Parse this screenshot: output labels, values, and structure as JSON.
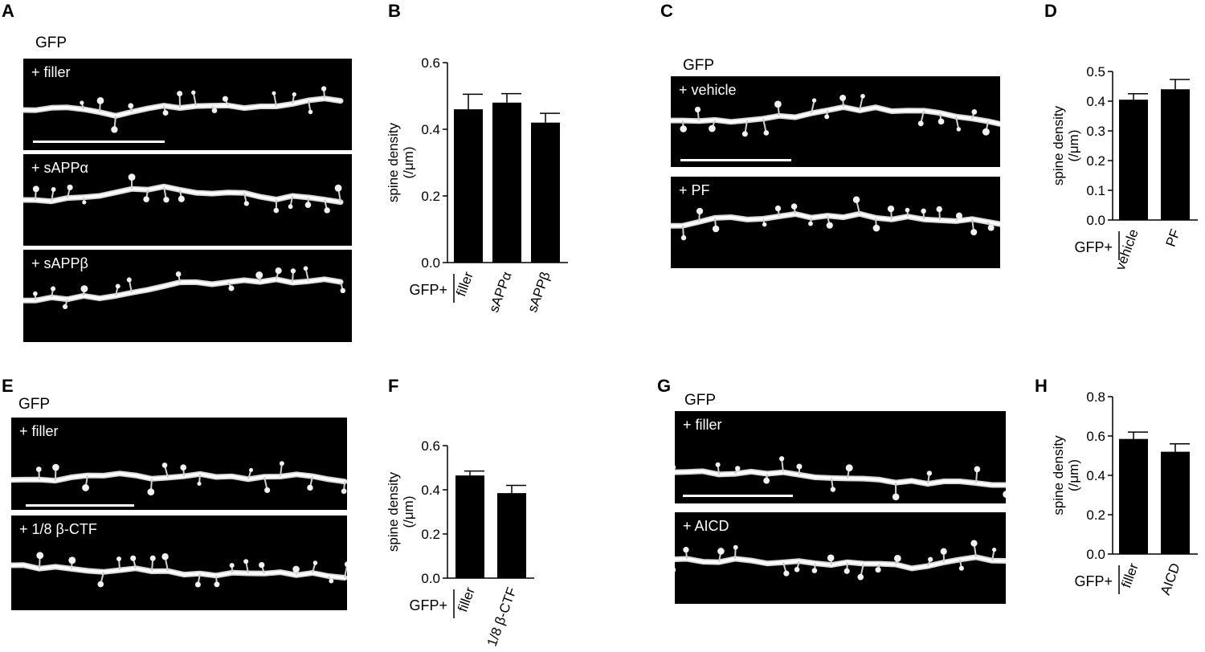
{
  "panels": [
    {
      "id": "A",
      "label": "A",
      "title": "GFP",
      "images": [
        "+ filler",
        "+ sAPPα",
        "+ sAPPβ"
      ]
    },
    {
      "id": "C",
      "label": "C",
      "title": "GFP",
      "images": [
        "+ vehicle",
        "+ PF"
      ]
    },
    {
      "id": "E",
      "label": "E",
      "title": "GFP",
      "images": [
        "+ filler",
        "+ 1/8 β-CTF"
      ]
    },
    {
      "id": "G",
      "label": "G",
      "title": "GFP",
      "images": [
        "+ filler",
        "+ AICD"
      ]
    }
  ],
  "chart_data": [
    {
      "id": "B",
      "label": "B",
      "type": "bar",
      "ylabel": [
        "spine density",
        "(/μm)"
      ],
      "group_label": "GFP+",
      "categories": [
        "filler",
        "sAPPα",
        "sAPPβ"
      ],
      "values": [
        0.46,
        0.48,
        0.42
      ],
      "errors": [
        0.045,
        0.027,
        0.028
      ],
      "ylim": [
        0,
        0.6
      ],
      "yticks": [
        "0.0",
        "0.2",
        "0.4",
        "0.6"
      ]
    },
    {
      "id": "D",
      "label": "D",
      "type": "bar",
      "ylabel": [
        "spine density",
        "(/μm)"
      ],
      "group_label": "GFP+",
      "categories": [
        "vehicle",
        "PF"
      ],
      "values": [
        0.405,
        0.44
      ],
      "errors": [
        0.02,
        0.033
      ],
      "ylim": [
        0,
        0.5
      ],
      "yticks": [
        "0.0",
        "0.1",
        "0.2",
        "0.3",
        "0.4",
        "0.5"
      ]
    },
    {
      "id": "F",
      "label": "F",
      "type": "bar",
      "ylabel": [
        "spine density",
        "(/μm)"
      ],
      "group_label": "GFP+",
      "categories": [
        "filler",
        "1/8 β-CTF"
      ],
      "values": [
        0.465,
        0.385
      ],
      "errors": [
        0.02,
        0.035
      ],
      "ylim": [
        0,
        0.6
      ],
      "yticks": [
        "0.0",
        "0.2",
        "0.4",
        "0.6"
      ]
    },
    {
      "id": "H",
      "label": "H",
      "type": "bar",
      "ylabel": [
        "spine density",
        "(/μm)"
      ],
      "group_label": "GFP+",
      "categories": [
        "filler",
        "AICD"
      ],
      "values": [
        0.585,
        0.52
      ],
      "errors": [
        0.035,
        0.04
      ],
      "ylim": [
        0,
        0.8
      ],
      "yticks": [
        "0.0",
        "0.2",
        "0.4",
        "0.6",
        "0.8"
      ]
    }
  ]
}
